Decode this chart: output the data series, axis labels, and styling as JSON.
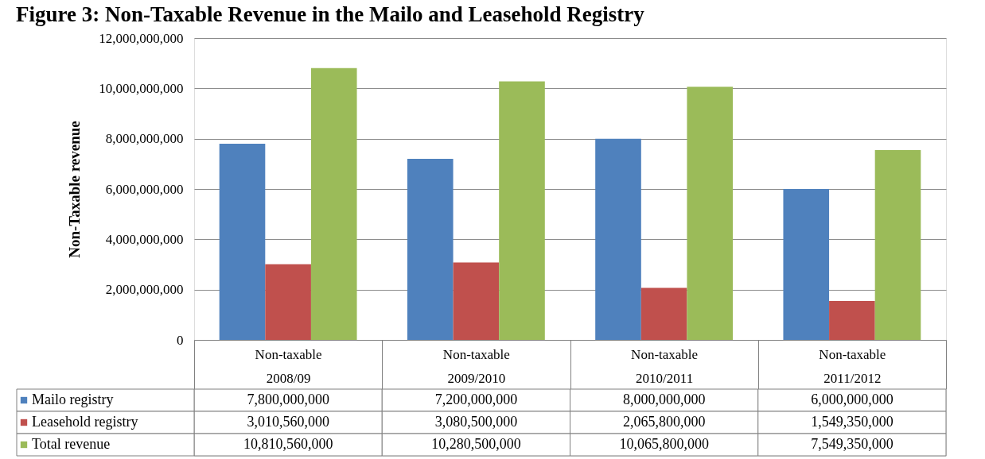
{
  "chart_data": {
    "type": "bar",
    "title": "Figure 3: Non-Taxable Revenue in the Mailo and Leasehold Registry",
    "ylabel": "Non-Taxable revenue",
    "categories": [
      "Non-taxable 2008/09",
      "Non-taxable 2009/2010",
      "Non-taxable 2010/2011",
      "Non-taxable 2011/2012"
    ],
    "series": [
      {
        "name": "Mailo registry",
        "color": "#4f81bd",
        "values": [
          7800000000,
          7200000000,
          8000000000,
          6000000000
        ],
        "value_labels": [
          "7,800,000,000",
          "7,200,000,000",
          "8,000,000,000",
          "6,000,000,000"
        ]
      },
      {
        "name": "Leasehold registry",
        "color": "#c0504d",
        "values": [
          3010560000,
          3080500000,
          2065800000,
          1549350000
        ],
        "value_labels": [
          "3,010,560,000",
          "3,080,500,000",
          "2,065,800,000",
          "1,549,350,000"
        ]
      },
      {
        "name": "Total revenue",
        "color": "#9bbb59",
        "values": [
          10810560000,
          10280500000,
          10065800000,
          7549350000
        ],
        "value_labels": [
          "10,810,560,000",
          "10,280,500,000",
          "10,065,800,000",
          "7,549,350,000"
        ]
      }
    ],
    "ylim": [
      0,
      12000000000
    ],
    "yticks": [
      0,
      {
        "value": 2000000000,
        "label": "2,000,000,000"
      },
      {
        "value": 4000000000,
        "label": "4,000,000,000"
      },
      {
        "value": 6000000000,
        "label": "6,000,000,000"
      },
      {
        "value": 8000000000,
        "label": "8,000,000,000"
      },
      {
        "value": 10000000000,
        "label": "10,000,000,000"
      },
      {
        "value": 12000000000,
        "label": "12,000,000,000"
      }
    ],
    "grid": "y",
    "legend": "bottom"
  }
}
